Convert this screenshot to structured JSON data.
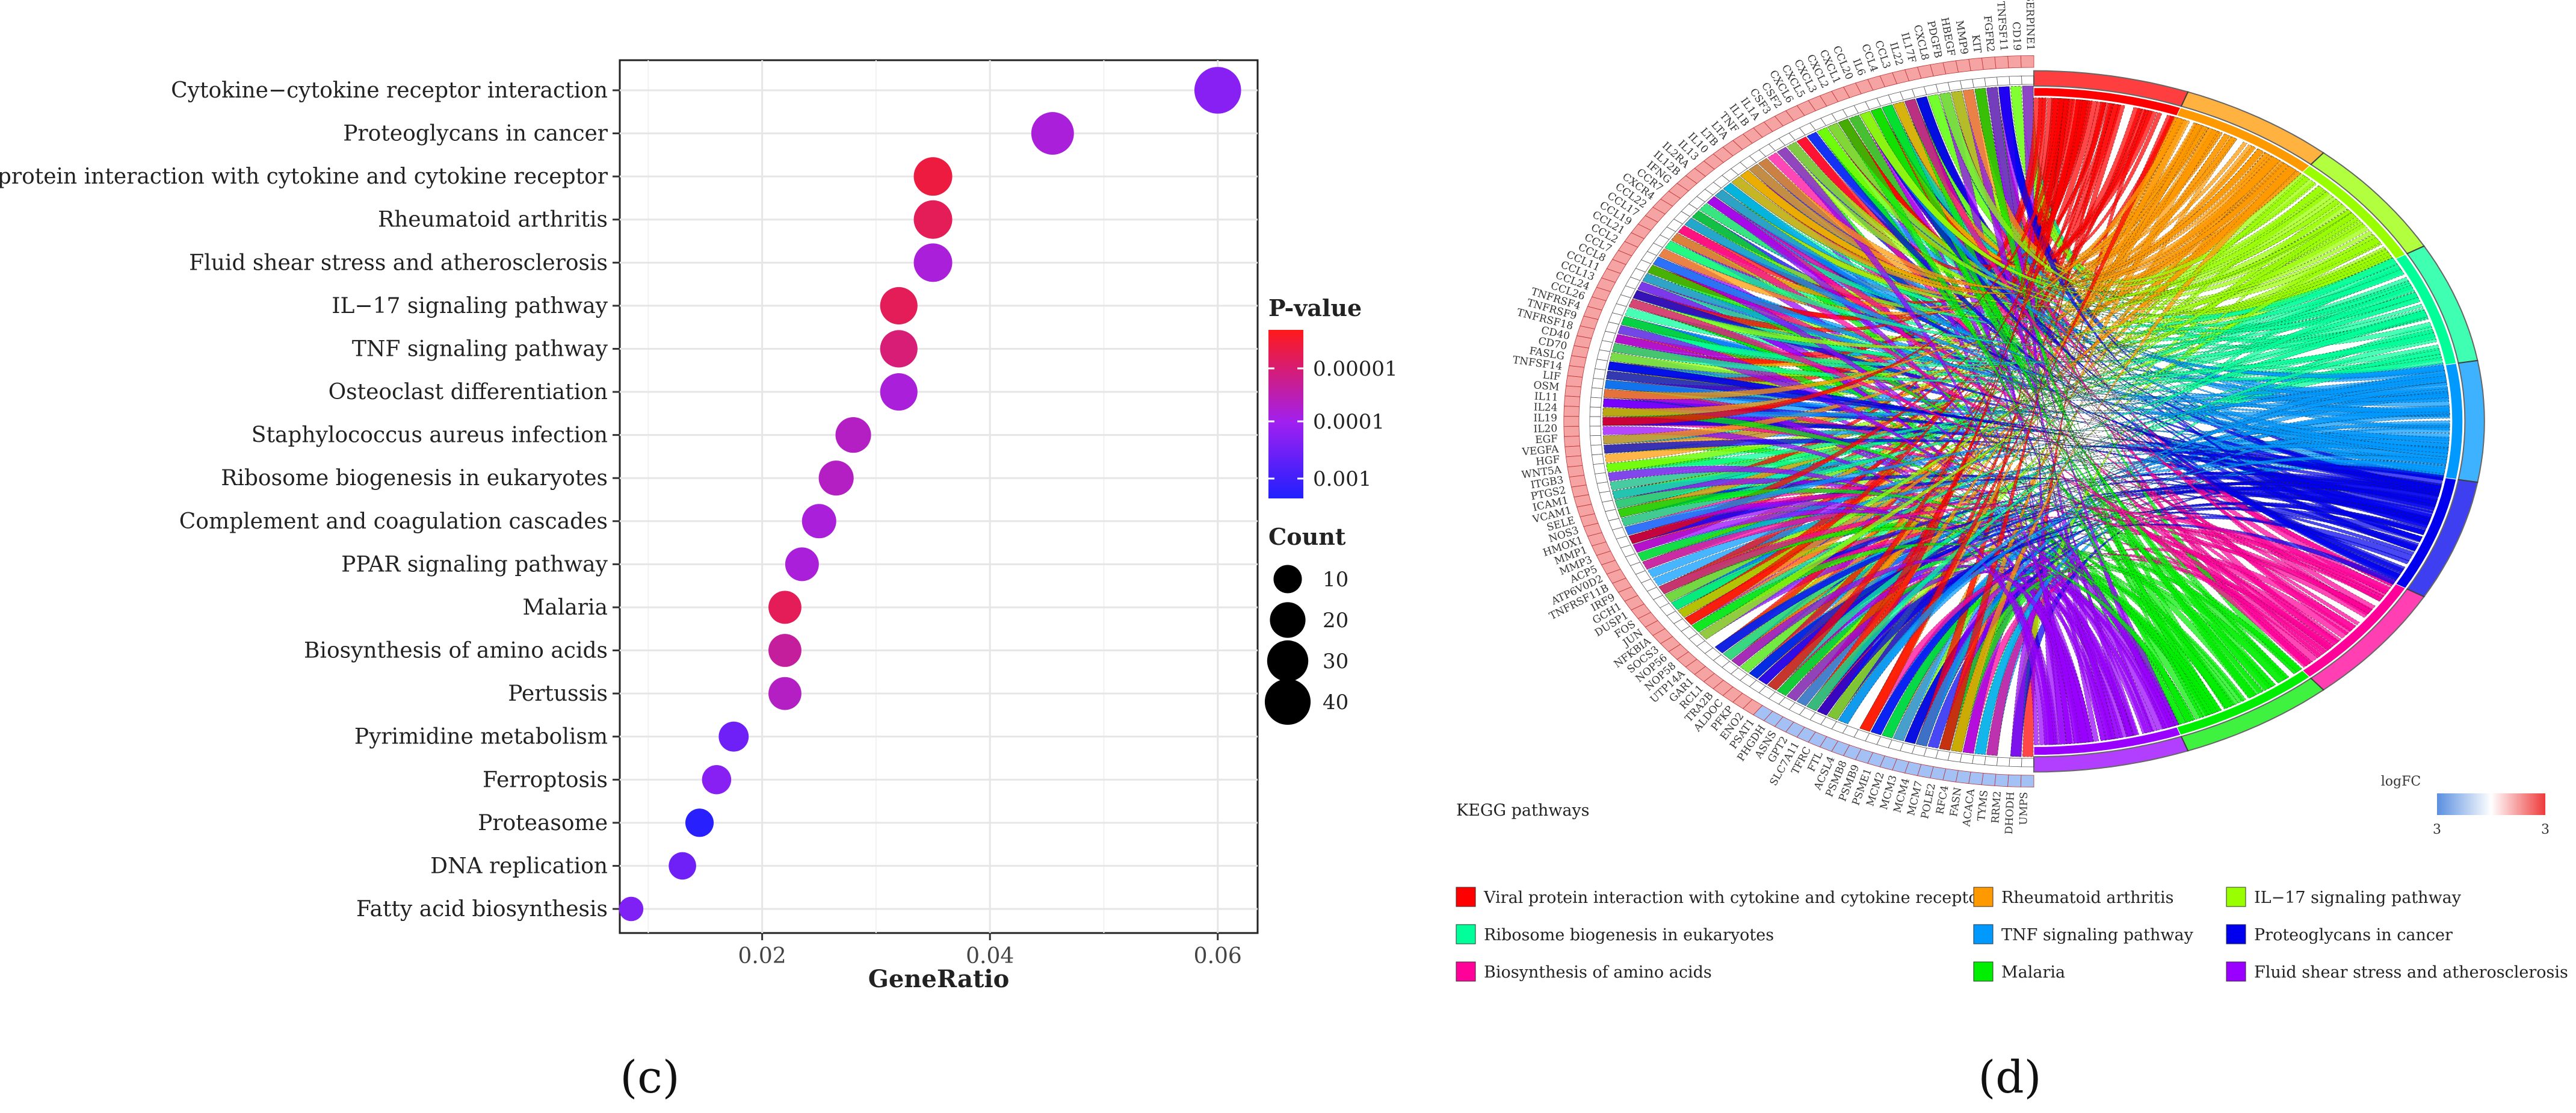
{
  "panel_labels": {
    "c": "(c)",
    "d": "(d)"
  },
  "chart_data": [
    {
      "type": "scatter",
      "title": "",
      "xlabel": "GeneRatio",
      "ylabel": "",
      "xlim": [
        0.0075,
        0.0635
      ],
      "xticks": [
        0.02,
        0.04,
        0.06
      ],
      "xtick_labels": [
        "0.02",
        "0.04",
        "0.06"
      ],
      "grid": true,
      "colors": {
        "low_p": "#ff1a1a",
        "mid_p": "#a020f0",
        "high_p": "#2020ff"
      },
      "color_legend": {
        "title": "P-value",
        "labels": [
          "0.00001",
          "0.0001",
          "0.001"
        ]
      },
      "size_legend": {
        "title": "Count",
        "labels": [
          "10",
          "20",
          "30",
          "40"
        ],
        "values": [
          10,
          20,
          30,
          40
        ]
      },
      "points": [
        {
          "term": "Cytokine−cytokine receptor interaction",
          "gene_ratio": 0.06,
          "count": 42,
          "pvalue": 8e-05
        },
        {
          "term": "Proteoglycans in cancer",
          "gene_ratio": 0.0455,
          "count": 33,
          "pvalue": 3e-05
        },
        {
          "term": "Viral protein interaction with cytokine and cytokine receptor",
          "gene_ratio": 0.035,
          "count": 25,
          "pvalue": 2e-06
        },
        {
          "term": "Rheumatoid arthritis",
          "gene_ratio": 0.035,
          "count": 25,
          "pvalue": 3e-06
        },
        {
          "term": "Fluid shear stress and atherosclerosis",
          "gene_ratio": 0.035,
          "count": 25,
          "pvalue": 3e-05
        },
        {
          "term": "IL−17 signaling pathway",
          "gene_ratio": 0.032,
          "count": 23,
          "pvalue": 3e-06
        },
        {
          "term": "TNF signaling pathway",
          "gene_ratio": 0.032,
          "count": 23,
          "pvalue": 5e-06
        },
        {
          "term": "Osteoclast differentiation",
          "gene_ratio": 0.032,
          "count": 23,
          "pvalue": 3e-05
        },
        {
          "term": "Staphylococcus aureus infection",
          "gene_ratio": 0.028,
          "count": 20,
          "pvalue": 2e-05
        },
        {
          "term": "Ribosome biogenesis in eukaryotes",
          "gene_ratio": 0.0265,
          "count": 19,
          "pvalue": 2e-05
        },
        {
          "term": "Complement and coagulation cascades",
          "gene_ratio": 0.025,
          "count": 18,
          "pvalue": 3e-05
        },
        {
          "term": "PPAR signaling pathway",
          "gene_ratio": 0.0235,
          "count": 17,
          "pvalue": 3e-05
        },
        {
          "term": "Malaria",
          "gene_ratio": 0.022,
          "count": 16,
          "pvalue": 3e-06
        },
        {
          "term": "Biosynthesis of amino acids",
          "gene_ratio": 0.022,
          "count": 16,
          "pvalue": 1e-05
        },
        {
          "term": "Pertussis",
          "gene_ratio": 0.022,
          "count": 16,
          "pvalue": 2e-05
        },
        {
          "term": "Pyrimidine metabolism",
          "gene_ratio": 0.0175,
          "count": 12,
          "pvalue": 0.00015
        },
        {
          "term": "Ferroptosis",
          "gene_ratio": 0.016,
          "count": 11,
          "pvalue": 8e-05
        },
        {
          "term": "Proteasome",
          "gene_ratio": 0.0145,
          "count": 10,
          "pvalue": 0.0008
        },
        {
          "term": "DNA replication",
          "gene_ratio": 0.013,
          "count": 9,
          "pvalue": 0.00015
        },
        {
          "term": "Fatty acid biosynthesis",
          "gene_ratio": 0.0085,
          "count": 6,
          "pvalue": 0.0001
        }
      ]
    },
    {
      "type": "chord",
      "title": "",
      "legend_title": "KEGG pathways",
      "logfc_legend": {
        "title": "logFC",
        "min_label": "3",
        "max_label": "3",
        "low_color": "#5b8fe0",
        "high_color": "#ee3b3b"
      },
      "pathways": [
        {
          "name": "Viral protein interaction with cytokine and cytokine receptor",
          "color": "#ff0000"
        },
        {
          "name": "Rheumatoid arthritis",
          "color": "#ff9900"
        },
        {
          "name": "IL−17 signaling pathway",
          "color": "#99ff00"
        },
        {
          "name": "Ribosome biogenesis in eukaryotes",
          "color": "#00ff99"
        },
        {
          "name": "TNF signaling pathway",
          "color": "#0099ff"
        },
        {
          "name": "Proteoglycans in cancer",
          "color": "#0000ee"
        },
        {
          "name": "Biosynthesis of amino acids",
          "color": "#ff0099"
        },
        {
          "name": "Malaria",
          "color": "#00ee00"
        },
        {
          "name": "Fluid shear stress and atherosclerosis",
          "color": "#9900ff"
        }
      ],
      "genes": [
        "SERPINE1",
        "CD19",
        "TNFSF11",
        "FGFR2",
        "KIT",
        "MMP9",
        "HBEGF",
        "PDGFB",
        "CXCL8",
        "IL17F",
        "IL22",
        "CCL3",
        "CCL4",
        "IL6",
        "CCL20",
        "CXCL1",
        "CXCL2",
        "CXCL3",
        "CXCL5",
        "CXCL6",
        "CSF2",
        "CSF3",
        "IL1A",
        "IL1B",
        "TNF",
        "LTA",
        "LTB",
        "IL10",
        "IL13",
        "IL2RA",
        "IL12B",
        "IFNG",
        "CCR7",
        "CXCR4",
        "CCL22",
        "CCL17",
        "CCL19",
        "CCL21",
        "CCL2",
        "CCL7",
        "CCL8",
        "CCL11",
        "CCL13",
        "CCL24",
        "CCL26",
        "TNFRSF4",
        "TNFRSF9",
        "TNFRSF18",
        "CD40",
        "CD70",
        "FASLG",
        "TNFSF14",
        "LIF",
        "OSM",
        "IL11",
        "IL24",
        "IL19",
        "IL20",
        "EGF",
        "VEGFA",
        "HGF",
        "WNT5A",
        "ITGB3",
        "PTGS2",
        "ICAM1",
        "VCAM1",
        "SELE",
        "NOS3",
        "HMOX1",
        "MMP1",
        "MMP3",
        "ACP5",
        "ATP6V0D2",
        "TNFRSF11B",
        "IRF9",
        "GCH1",
        "DUSP1",
        "FOS",
        "JUN",
        "NFKBIA",
        "SOCS3",
        "NOP56",
        "NOP58",
        "UTP14A",
        "GAR1",
        "RCL1",
        "TRA2B",
        "ALDOC",
        "PFKP",
        "ENO2",
        "PSAT1",
        "PHGDH",
        "ASNS",
        "GPT2",
        "SLC7A11",
        "TFRC",
        "FTL",
        "ACSL4",
        "PSMB8",
        "PSMB9",
        "PSME1",
        "MCM2",
        "MCM3",
        "MCM4",
        "MCM7",
        "POLE2",
        "RFC4",
        "FASN",
        "ACACA",
        "TYMS",
        "RRM2",
        "DHODH",
        "UMPS"
      ]
    }
  ]
}
